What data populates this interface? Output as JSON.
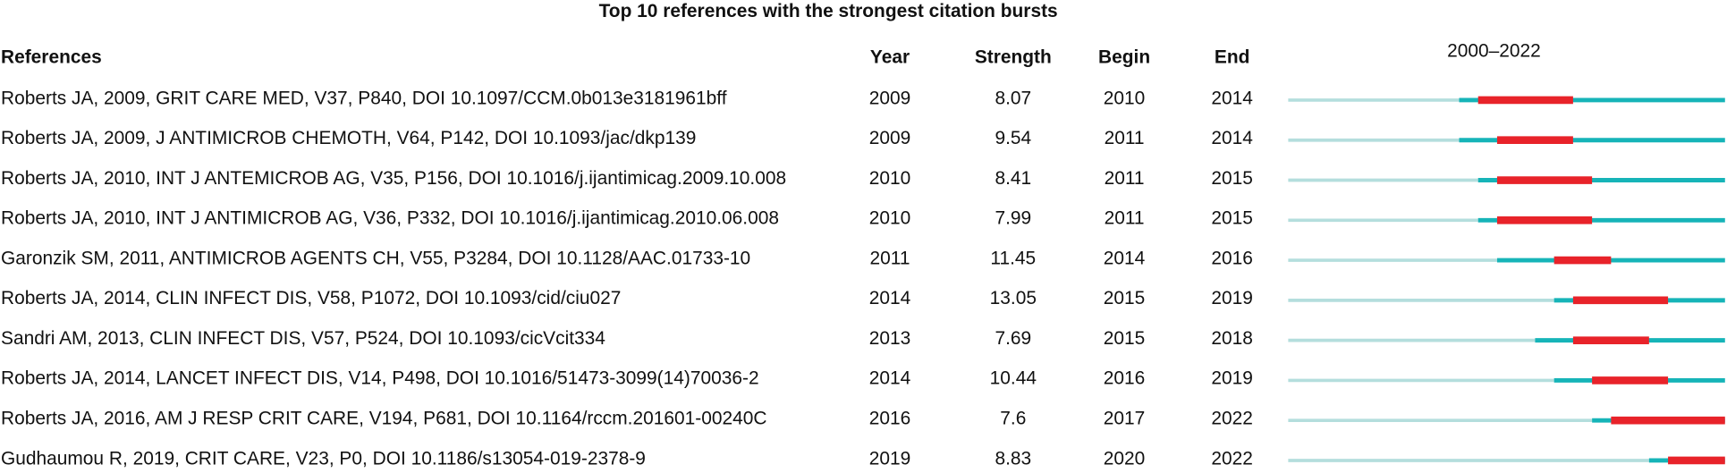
{
  "title": "Top 10 references with the strongest citation bursts",
  "columns": [
    "References",
    "Year",
    "Strength",
    "Begin",
    "End"
  ],
  "period": {
    "label": "2000–2022",
    "start": 2000,
    "end": 2022
  },
  "rows": [
    {
      "reference": "Roberts JA, 2009, GRIT CARE MED, V37, P840, DOI 10.1097/CCM.0b013e3181961bff",
      "year": 2009,
      "strength": 8.07,
      "begin": 2010,
      "end": 2014
    },
    {
      "reference": "Roberts JA, 2009, J ANTIMICROB CHEMOTH, V64, P142, DOI 10.1093/jac/dkp139",
      "year": 2009,
      "strength": 9.54,
      "begin": 2011,
      "end": 2014
    },
    {
      "reference": "Roberts JA, 2010, INT J ANTEMICROB AG, V35, P156, DOI 10.1016/j.ijantimicag.2009.10.008",
      "year": 2010,
      "strength": 8.41,
      "begin": 2011,
      "end": 2015
    },
    {
      "reference": "Roberts JA, 2010, INT J ANTIMICROB AG, V36, P332, DOI 10.1016/j.ijantimicag.2010.06.008",
      "year": 2010,
      "strength": 7.99,
      "begin": 2011,
      "end": 2015
    },
    {
      "reference": "Garonzik SM, 2011, ANTIMICROB AGENTS CH, V55, P3284, DOI 10.1128/AAC.01733-10",
      "year": 2011,
      "strength": 11.45,
      "begin": 2014,
      "end": 2016
    },
    {
      "reference": "Roberts JA, 2014, CLIN INFECT DIS, V58, P1072, DOI 10.1093/cid/ciu027",
      "year": 2014,
      "strength": 13.05,
      "begin": 2015,
      "end": 2019
    },
    {
      "reference": "Sandri AM, 2013, CLIN INFECT DIS, V57, P524, DOI 10.1093/cicVcit334",
      "year": 2013,
      "strength": 7.69,
      "begin": 2015,
      "end": 2018
    },
    {
      "reference": "Roberts JA, 2014, LANCET INFECT DIS, V14, P498, DOI 10.1016/51473-3099(14)70036-2",
      "year": 2014,
      "strength": 10.44,
      "begin": 2016,
      "end": 2019
    },
    {
      "reference": "Roberts JA, 2016, AM J RESP CRIT CARE, V194, P681, DOI 10.1164/rccm.201601-00240C",
      "year": 2016,
      "strength": 7.6,
      "begin": 2017,
      "end": 2022
    },
    {
      "reference": "Gudhaumou R, 2019, CRIT CARE, V23, P0, DOI 10.1186/s13054-019-2378-9",
      "year": 2019,
      "strength": 8.83,
      "begin": 2020,
      "end": 2022
    }
  ]
}
